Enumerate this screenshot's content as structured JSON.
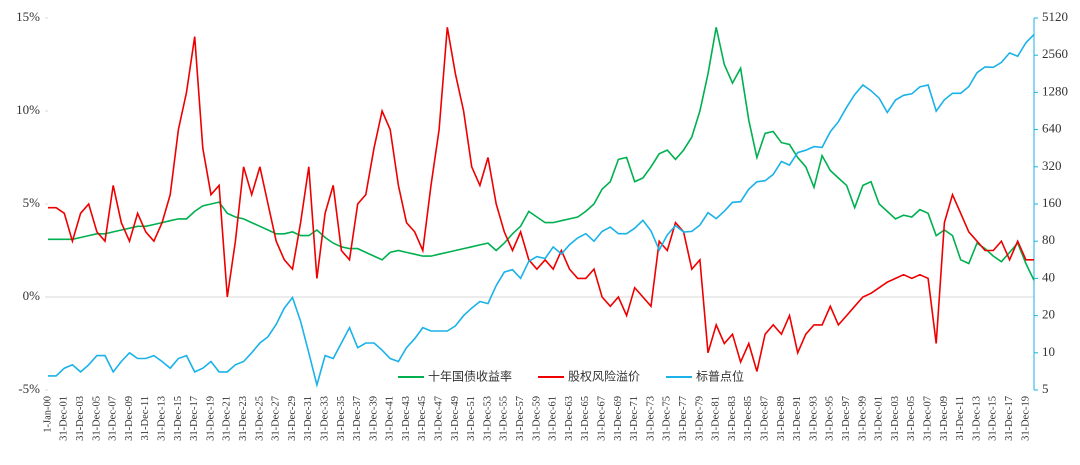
{
  "chart_data": {
    "type": "line",
    "categories": [
      "1-Jan-00",
      null,
      "31-Dec-01",
      null,
      "31-Dec-03",
      null,
      "31-Dec-05",
      null,
      "31-Dec-07",
      null,
      "31-Dec-09",
      null,
      "31-Dec-11",
      null,
      "31-Dec-13",
      null,
      "31-Dec-15",
      null,
      "31-Dec-17",
      null,
      "31-Dec-19",
      null,
      "31-Dec-21",
      null,
      "31-Dec-23",
      null,
      "31-Dec-25",
      null,
      "31-Dec-27",
      null,
      "31-Dec-29",
      null,
      "31-Dec-31",
      null,
      "31-Dec-33",
      null,
      "31-Dec-35",
      null,
      "31-Dec-37",
      null,
      "31-Dec-39",
      null,
      "31-Dec-41",
      null,
      "31-Dec-43",
      null,
      "31-Dec-45",
      null,
      "31-Dec-47",
      null,
      "31-Dec-49",
      null,
      "31-Dec-51",
      null,
      "31-Dec-53",
      null,
      "31-Dec-55",
      null,
      "31-Dec-57",
      null,
      "31-Dec-59",
      null,
      "31-Dec-61",
      null,
      "31-Dec-63",
      null,
      "31-Dec-65",
      null,
      "31-Dec-67",
      null,
      "31-Dec-69",
      null,
      "31-Dec-71",
      null,
      "31-Dec-73",
      null,
      "31-Dec-75",
      null,
      "31-Dec-77",
      null,
      "31-Dec-79",
      null,
      "31-Dec-81",
      null,
      "31-Dec-83",
      null,
      "31-Dec-85",
      null,
      "31-Dec-87",
      null,
      "31-Dec-89",
      null,
      "31-Dec-91",
      null,
      "31-Dec-93",
      null,
      "31-Dec-95",
      null,
      "31-Dec-97",
      null,
      "31-Dec-99",
      null,
      "31-Dec-01",
      null,
      "31-Dec-03",
      null,
      "31-Dec-05",
      null,
      "31-Dec-07",
      null,
      "31-Dec-09",
      null,
      "31-Dec-11",
      null,
      "31-Dec-13",
      null,
      "31-Dec-15",
      null,
      "31-Dec-17",
      null,
      "31-Dec-19",
      null
    ],
    "series": [
      {
        "name": "十年国债收益率",
        "color": "#00b050",
        "values": [
          3.1,
          3.1,
          3.1,
          3.1,
          3.2,
          3.3,
          3.4,
          3.4,
          3.5,
          3.6,
          3.7,
          3.8,
          3.8,
          3.9,
          4.0,
          4.1,
          4.2,
          4.2,
          4.6,
          4.9,
          5.0,
          5.1,
          4.5,
          4.3,
          4.2,
          4.0,
          3.8,
          3.6,
          3.4,
          3.4,
          3.5,
          3.3,
          3.3,
          3.6,
          3.2,
          2.9,
          2.7,
          2.6,
          2.6,
          2.4,
          2.2,
          2.0,
          2.4,
          2.5,
          2.4,
          2.3,
          2.2,
          2.2,
          2.3,
          2.4,
          2.5,
          2.6,
          2.7,
          2.8,
          2.9,
          2.5,
          2.9,
          3.4,
          3.8,
          4.6,
          4.3,
          4.0,
          4.0,
          4.1,
          4.2,
          4.3,
          4.6,
          5.0,
          5.8,
          6.2,
          7.4,
          7.5,
          6.2,
          6.4,
          7.0,
          7.7,
          7.9,
          7.4,
          7.9,
          8.6,
          10.0,
          12.0,
          14.5,
          12.5,
          11.5,
          12.3,
          9.5,
          7.5,
          8.8,
          8.9,
          8.3,
          8.2,
          7.5,
          7.0,
          5.9,
          7.6,
          6.8,
          6.4,
          6.0,
          4.8,
          6.0,
          6.2,
          5.0,
          4.6,
          4.2,
          4.4,
          4.3,
          4.7,
          4.5,
          3.3,
          3.6,
          3.3,
          2.0,
          1.8,
          2.9,
          2.6,
          2.2,
          1.9,
          2.4,
          2.9,
          1.8,
          0.9
        ]
      },
      {
        "name": "股权风险溢价",
        "color": "#ee0000",
        "values": [
          4.8,
          4.8,
          4.5,
          3.0,
          4.5,
          5.0,
          3.5,
          3.0,
          6.0,
          4.0,
          3.0,
          4.5,
          3.5,
          3.0,
          4.0,
          5.5,
          9.0,
          11.0,
          14.0,
          8.0,
          5.5,
          6.0,
          0.0,
          3.0,
          7.0,
          5.5,
          7.0,
          5.0,
          3.0,
          2.0,
          1.5,
          4.0,
          7.0,
          1.0,
          4.5,
          6.0,
          2.5,
          2.0,
          5.0,
          5.5,
          8.0,
          10.0,
          9.0,
          6.0,
          4.0,
          3.5,
          2.5,
          6.0,
          9.0,
          14.5,
          12.0,
          10.0,
          7.0,
          6.0,
          7.5,
          5.0,
          3.5,
          2.5,
          3.5,
          2.0,
          1.5,
          2.0,
          1.5,
          2.5,
          1.5,
          1.0,
          1.0,
          1.5,
          0.0,
          -0.5,
          0.0,
          -1.0,
          0.5,
          0.0,
          -0.5,
          3.0,
          2.5,
          4.0,
          3.5,
          1.5,
          2.0,
          -3.0,
          -1.5,
          -2.5,
          -2.0,
          -3.5,
          -2.5,
          -4.0,
          -2.0,
          -1.5,
          -2.0,
          -1.0,
          -3.0,
          -2.0,
          -1.5,
          -1.5,
          -0.5,
          -1.5,
          -1.0,
          -0.5,
          0.0,
          0.2,
          0.5,
          0.8,
          1.0,
          1.2,
          1.0,
          1.2,
          1.0,
          -2.5,
          4.0,
          5.5,
          4.5,
          3.5,
          3.0,
          2.5,
          2.5,
          3.0,
          2.0,
          3.0,
          2.0,
          2.0
        ]
      },
      {
        "name": "标普点位",
        "color": "#1ab2e8",
        "axis": "y2",
        "values": [
          6.5,
          6.5,
          7.5,
          8,
          7,
          8,
          9.5,
          9.5,
          7,
          8.5,
          10,
          9,
          9,
          9.5,
          8.5,
          7.5,
          9,
          9.5,
          7,
          7.5,
          8.5,
          7,
          7,
          8,
          8.5,
          10,
          12,
          13.5,
          17,
          23,
          28,
          18,
          10,
          5.5,
          9.5,
          9,
          12,
          16,
          11,
          12,
          12,
          10.5,
          9,
          8.5,
          11,
          13,
          16,
          15,
          15,
          15,
          16.5,
          20,
          23,
          26,
          25,
          35,
          45,
          47,
          40,
          55,
          60,
          58,
          72,
          63,
          75,
          85,
          92,
          80,
          96,
          104,
          92,
          92,
          102,
          118,
          97,
          68,
          90,
          107,
          95,
          96,
          108,
          136,
          122,
          140,
          165,
          167,
          211,
          242,
          247,
          278,
          353,
          330,
          417,
          436,
          466,
          459,
          616,
          741,
          970,
          1229,
          1469,
          1320,
          1148,
          880,
          1112,
          1212,
          1248,
          1418,
          1468,
          903,
          1115,
          1258,
          1258,
          1426,
          1848,
          2059,
          2044,
          2239,
          2674,
          2507,
          3231,
          3756
        ]
      }
    ],
    "ylim": [
      -5,
      15
    ],
    "yticks": [
      {
        "value": -5,
        "label": "-5%"
      },
      {
        "value": 0,
        "label": "0%"
      },
      {
        "value": 5,
        "label": "5%"
      },
      {
        "value": 10,
        "label": "10%"
      },
      {
        "value": 15,
        "label": "15%"
      }
    ],
    "y2lim": [
      5,
      5120
    ],
    "y2scale": "log",
    "y2ticks": [
      5,
      10,
      20,
      40,
      80,
      160,
      320,
      640,
      1280,
      2560,
      5120
    ],
    "legend": "bottom"
  }
}
